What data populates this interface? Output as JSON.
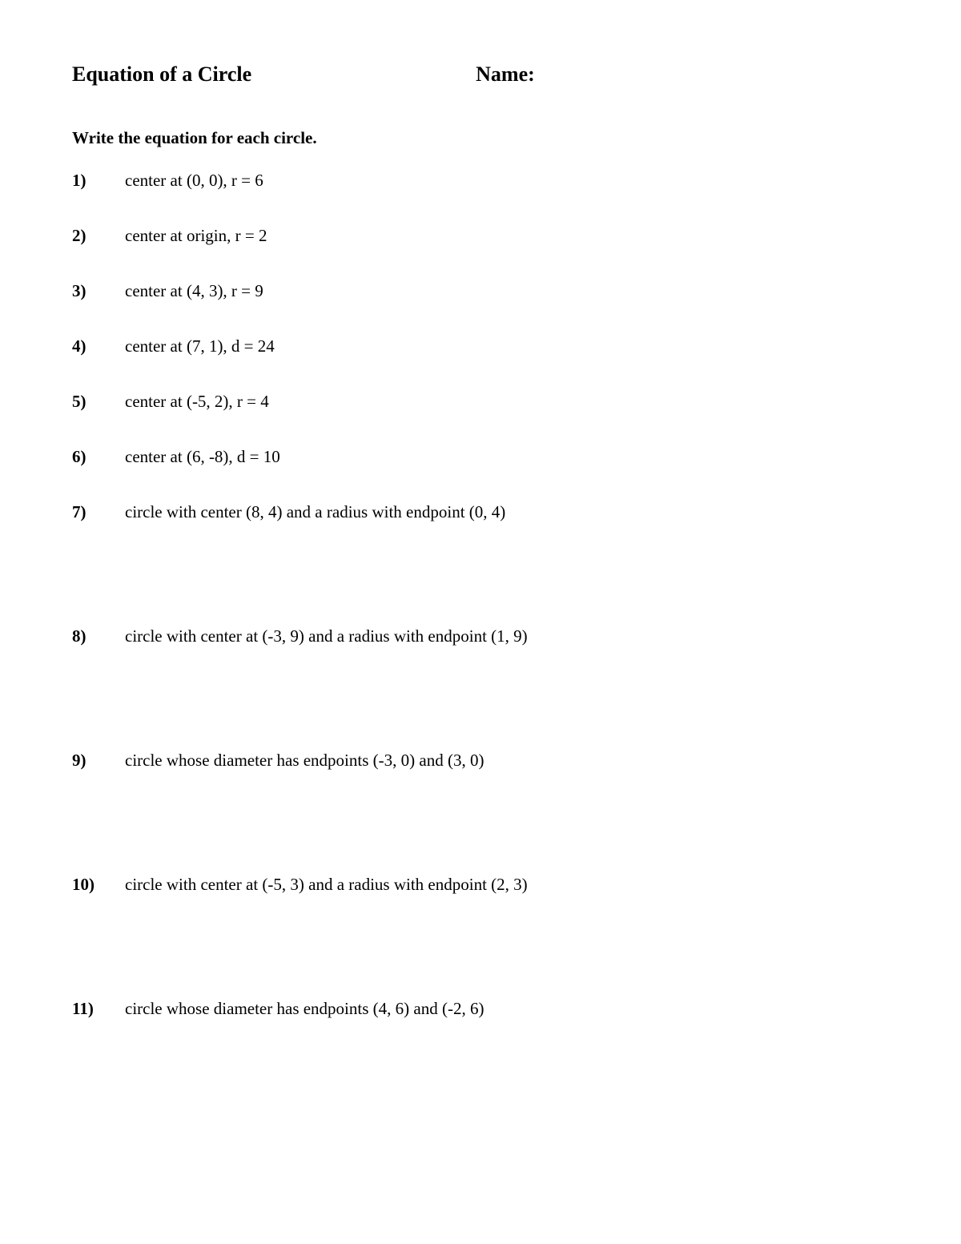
{
  "header": {
    "title": "Equation of a Circle",
    "name_label": "Name:"
  },
  "instructions": "Write the equation for each circle.",
  "problems": [
    {
      "num": "1)",
      "text": "center at (0, 0), r = 6",
      "gap": "small"
    },
    {
      "num": "2)",
      "text": "center at origin, r = 2",
      "gap": "small"
    },
    {
      "num": "3)",
      "text": "center at (4, 3), r = 9",
      "gap": "small"
    },
    {
      "num": "4)",
      "text": "center at (7, 1), d = 24",
      "gap": "small"
    },
    {
      "num": "5)",
      "text": "center at (-5, 2), r = 4",
      "gap": "small"
    },
    {
      "num": "6)",
      "text": "center at (6, -8), d = 10",
      "gap": "small"
    },
    {
      "num": "7)",
      "text": "circle with center (8, 4) and a radius with endpoint (0, 4)",
      "gap": "large"
    },
    {
      "num": "8)",
      "text": "circle with center at (-3, 9) and a radius with endpoint (1, 9)",
      "gap": "large"
    },
    {
      "num": "9)",
      "text": "circle whose diameter has endpoints (-3, 0) and (3, 0)",
      "gap": "large"
    },
    {
      "num": "10)",
      "text": "circle with center at (-5, 3) and a radius with endpoint (2, 3)",
      "gap": "large"
    },
    {
      "num": "11)",
      "text": "circle whose diameter has endpoints (4, 6) and (-2, 6)",
      "gap": "large"
    }
  ],
  "style": {
    "background_color": "#ffffff",
    "text_color": "#000000",
    "title_fontsize": 26,
    "body_fontsize": 21,
    "font_family": "Times New Roman"
  }
}
